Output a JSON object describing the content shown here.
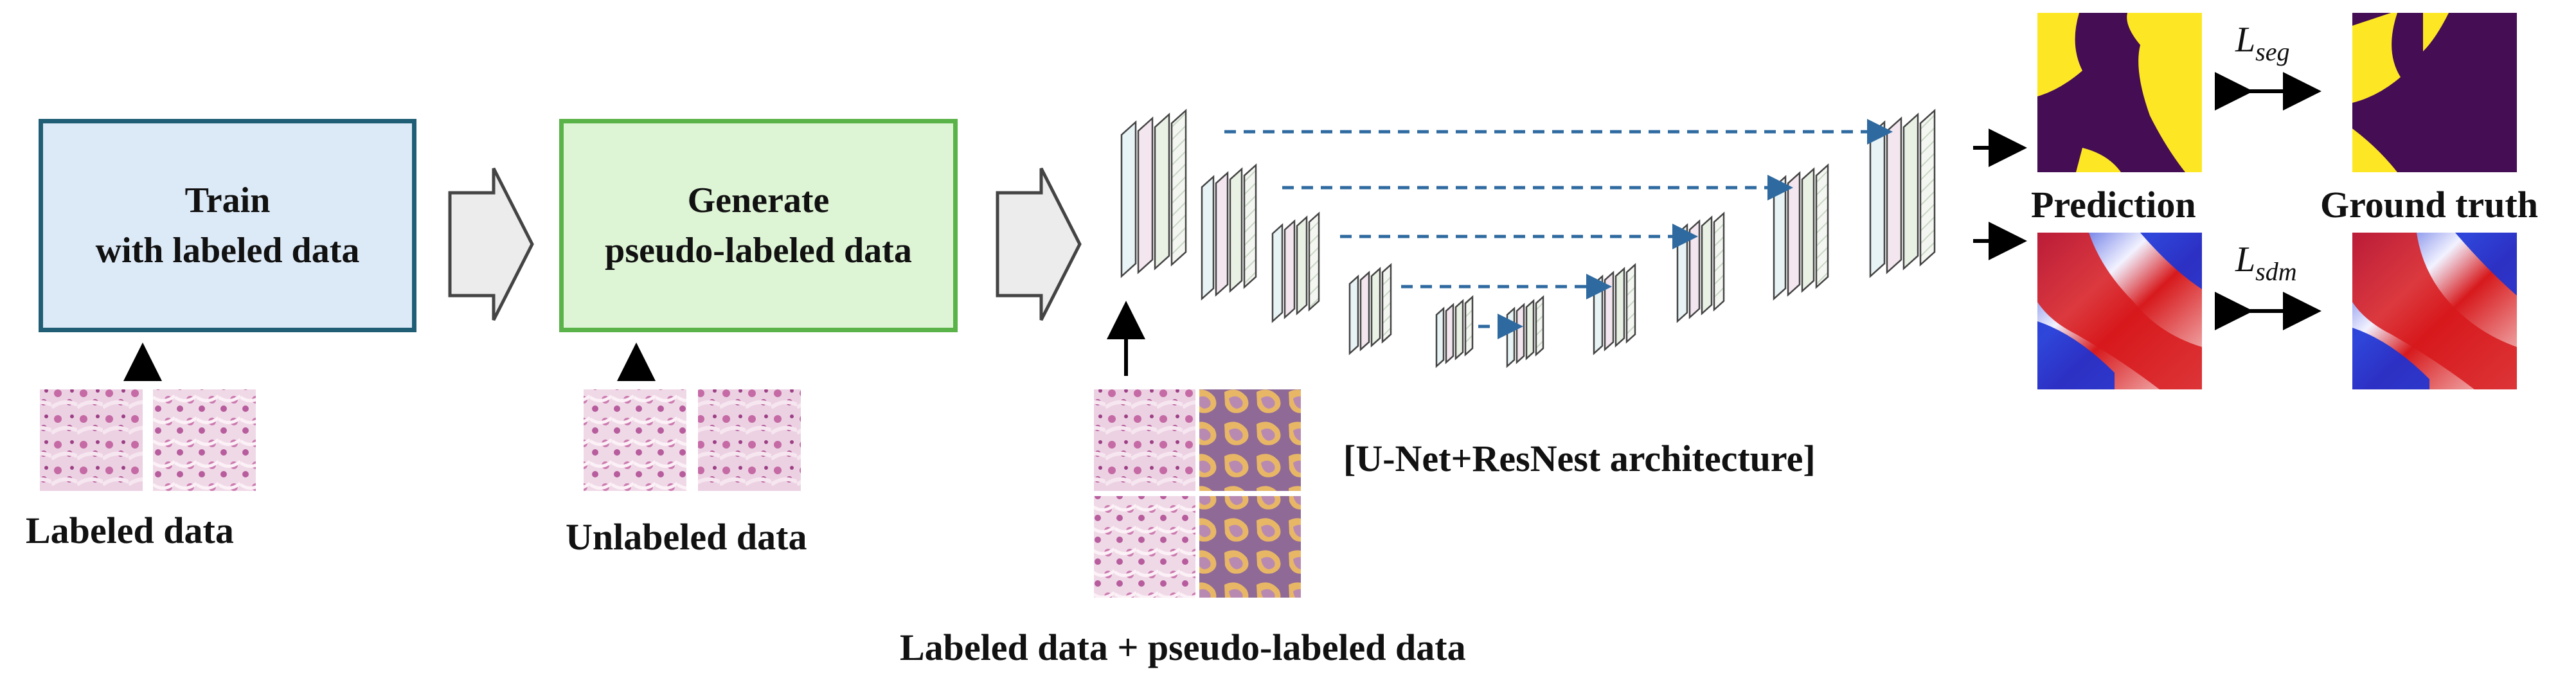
{
  "steps": {
    "train": {
      "line1": "Train",
      "line2": "with labeled data"
    },
    "generate": {
      "line1": "Generate",
      "line2": "pseudo-labeled data"
    }
  },
  "labels": {
    "labeled_data": "Labeled data",
    "unlabeled_data": "Unlabeled data",
    "architecture": "[U-Net+ResNest architecture]",
    "combined_data": "Labeled data + pseudo-labeled data",
    "prediction": "Prediction",
    "ground_truth": "Ground truth"
  },
  "losses": {
    "seg": {
      "base": "L",
      "sub": "seg"
    },
    "sdm": {
      "base": "L",
      "sub": "sdm"
    }
  },
  "colors": {
    "train_fill": "#dce9f6",
    "train_border": "#1f5e74",
    "generate_fill": "#ddf4d5",
    "generate_border": "#5ab348",
    "skip_arrow": "#2e6aa0",
    "mask_purple": "#440d54",
    "mask_yellow": "#fde725",
    "sdm_red": "#d7191c",
    "sdm_blue": "#1a33d6"
  }
}
